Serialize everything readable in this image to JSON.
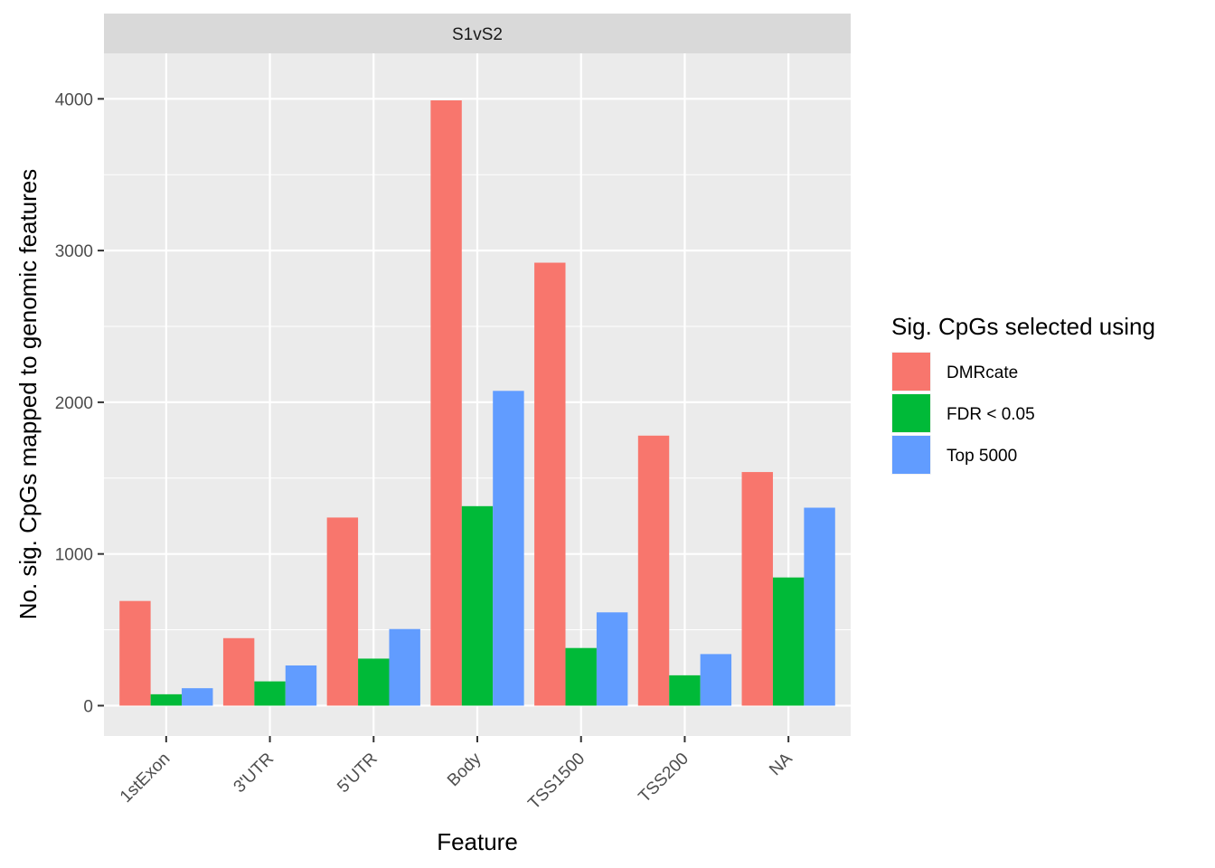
{
  "chart_data": {
    "type": "bar",
    "facet": "S1vS2",
    "xlabel": "Feature",
    "ylabel": "No. sig. CpGs mapped to genomic features",
    "categories": [
      "1stExon",
      "3'UTR",
      "5'UTR",
      "Body",
      "TSS1500",
      "TSS200",
      "NA"
    ],
    "ylim": [
      -200,
      4300
    ],
    "yticks": [
      0,
      1000,
      2000,
      3000,
      4000
    ],
    "grid": true,
    "legend": {
      "title": "Sig. CpGs selected using",
      "position": "right"
    },
    "series": [
      {
        "name": "DMRcate",
        "color": "#F8766D",
        "values": [
          690,
          445,
          1240,
          3990,
          2920,
          1780,
          1540
        ]
      },
      {
        "name": "FDR < 0.05",
        "color": "#00BA38",
        "values": [
          75,
          160,
          310,
          1315,
          380,
          200,
          845
        ]
      },
      {
        "name": "Top 5000",
        "color": "#619CFF",
        "values": [
          115,
          265,
          505,
          2075,
          615,
          340,
          1305
        ]
      }
    ]
  },
  "colors": {
    "panel_background": "#EBEBEB",
    "strip_background": "#D9D9D9",
    "grid": "#FFFFFF"
  }
}
